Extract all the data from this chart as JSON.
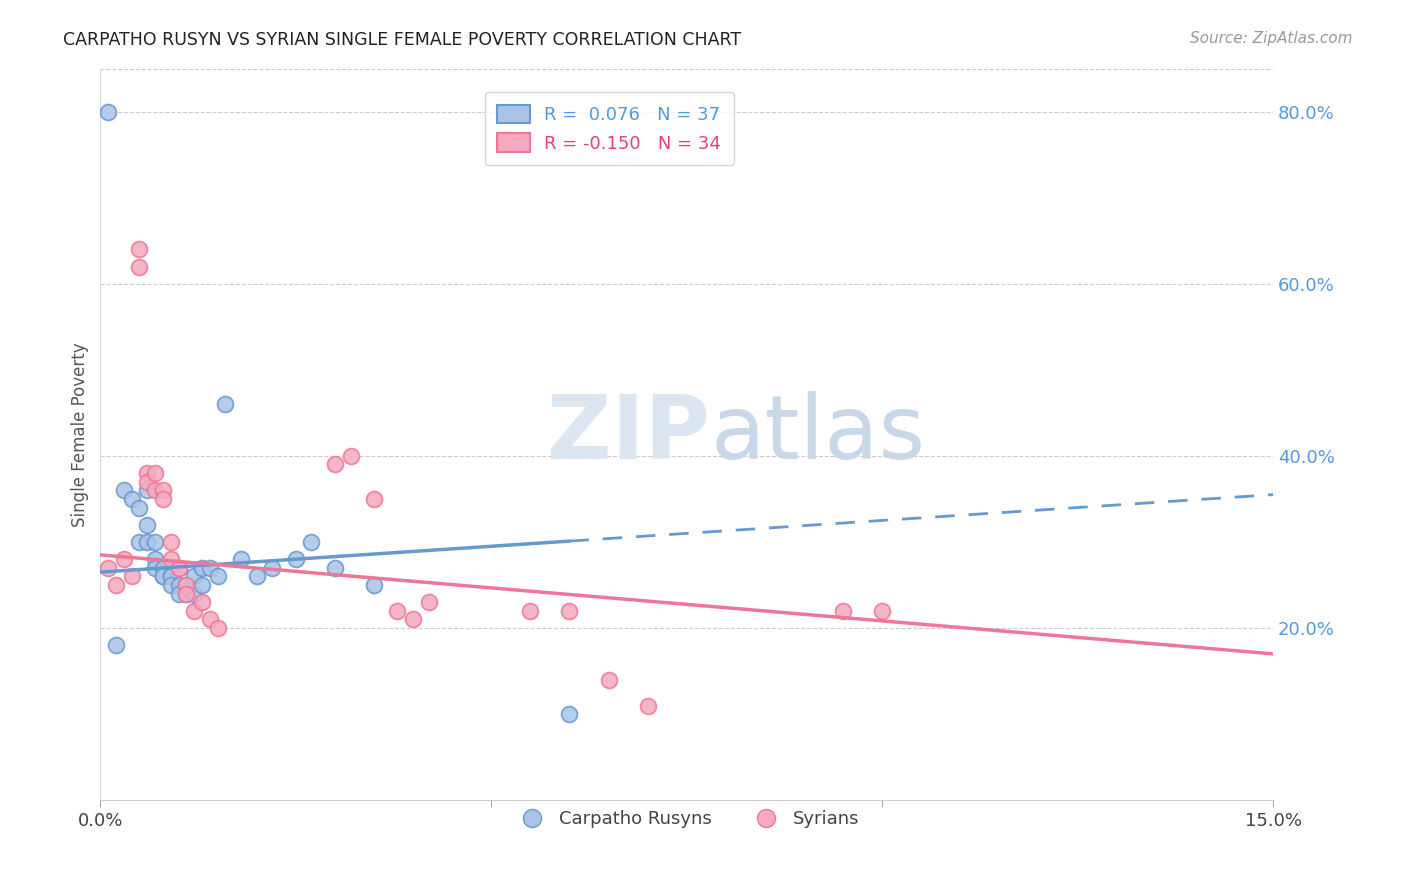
{
  "title": "CARPATHO RUSYN VS SYRIAN SINGLE FEMALE POVERTY CORRELATION CHART",
  "source": "Source: ZipAtlas.com",
  "ylabel": "Single Female Poverty",
  "right_yticks": [
    "80.0%",
    "60.0%",
    "40.0%",
    "20.0%"
  ],
  "right_ytick_vals": [
    0.8,
    0.6,
    0.4,
    0.2
  ],
  "legend_r1": "R =  0.076   N = 37",
  "legend_r2": "R = -0.150   N = 34",
  "blue_color": "#6699cc",
  "pink_color": "#ee7799",
  "blue_fill": "#aac4e8",
  "pink_fill": "#f5aabf",
  "watermark_zip": "ZIP",
  "watermark_atlas": "atlas",
  "carpatho_x": [
    0.001,
    0.002,
    0.003,
    0.004,
    0.005,
    0.005,
    0.006,
    0.006,
    0.006,
    0.007,
    0.007,
    0.007,
    0.008,
    0.008,
    0.008,
    0.009,
    0.009,
    0.009,
    0.01,
    0.01,
    0.011,
    0.011,
    0.012,
    0.012,
    0.013,
    0.013,
    0.014,
    0.015,
    0.016,
    0.018,
    0.02,
    0.022,
    0.025,
    0.027,
    0.03,
    0.035,
    0.06
  ],
  "carpatho_y": [
    0.8,
    0.18,
    0.36,
    0.35,
    0.34,
    0.3,
    0.36,
    0.32,
    0.3,
    0.3,
    0.28,
    0.27,
    0.27,
    0.26,
    0.26,
    0.26,
    0.26,
    0.25,
    0.25,
    0.24,
    0.25,
    0.24,
    0.26,
    0.24,
    0.27,
    0.25,
    0.27,
    0.26,
    0.46,
    0.28,
    0.26,
    0.27,
    0.28,
    0.3,
    0.27,
    0.25,
    0.1
  ],
  "syrian_x": [
    0.001,
    0.002,
    0.003,
    0.004,
    0.005,
    0.005,
    0.006,
    0.006,
    0.007,
    0.007,
    0.008,
    0.008,
    0.009,
    0.009,
    0.01,
    0.01,
    0.011,
    0.011,
    0.012,
    0.013,
    0.014,
    0.015,
    0.03,
    0.032,
    0.035,
    0.038,
    0.04,
    0.042,
    0.055,
    0.06,
    0.065,
    0.07,
    0.095,
    0.1
  ],
  "syrian_y": [
    0.27,
    0.25,
    0.28,
    0.26,
    0.64,
    0.62,
    0.38,
    0.37,
    0.38,
    0.36,
    0.36,
    0.35,
    0.3,
    0.28,
    0.27,
    0.27,
    0.25,
    0.24,
    0.22,
    0.23,
    0.21,
    0.2,
    0.39,
    0.4,
    0.35,
    0.22,
    0.21,
    0.23,
    0.22,
    0.22,
    0.14,
    0.11,
    0.22,
    0.22
  ],
  "xlim": [
    0.0,
    0.15
  ],
  "ylim": [
    0.0,
    0.85
  ]
}
